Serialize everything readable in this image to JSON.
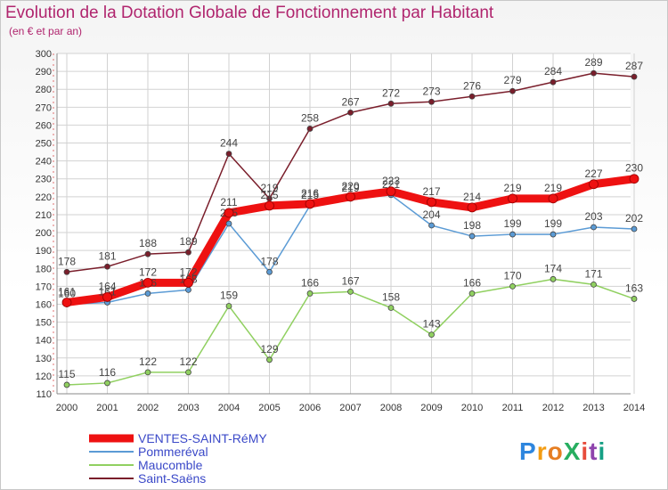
{
  "title": "Evolution de la Dotation Globale de Fonctionnement par Habitant",
  "subtitle": "(en € et par an)",
  "logo_text": "ProXiti",
  "colors": {
    "title": "#b0256e",
    "grid": "#d2d2d2",
    "axis_text": "#333333",
    "label_text": "#444444"
  },
  "chart_data": {
    "type": "line",
    "x": [
      2000,
      2001,
      2002,
      2003,
      2004,
      2005,
      2006,
      2007,
      2008,
      2009,
      2010,
      2011,
      2012,
      2013,
      2014
    ],
    "ylim": [
      110,
      300
    ],
    "yticks": [
      110,
      120,
      130,
      140,
      150,
      160,
      170,
      180,
      190,
      200,
      210,
      220,
      230,
      240,
      250,
      260,
      270,
      280,
      290,
      300
    ],
    "grid": true,
    "legend_position": "bottom-left",
    "series": [
      {
        "name": "Saint-Saëns",
        "color": "#7a1e2b",
        "values": [
          178,
          181,
          188,
          189,
          244,
          219,
          258,
          267,
          272,
          273,
          276,
          279,
          284,
          289,
          287
        ]
      },
      {
        "name": "Pommeréval",
        "color": "#5b9bd5",
        "values": [
          160,
          161,
          166,
          168,
          205,
          178,
          215,
          219,
          221,
          204,
          198,
          199,
          199,
          203,
          202
        ]
      },
      {
        "name": "Maucomble",
        "color": "#90d060",
        "values": [
          115,
          116,
          122,
          122,
          159,
          129,
          166,
          167,
          158,
          143,
          166,
          170,
          174,
          171,
          163
        ]
      },
      {
        "name": "VENTES-SAINT-RéMY",
        "color": "#ee1111",
        "values": [
          161,
          164,
          172,
          172,
          211,
          215,
          216,
          220,
          223,
          217,
          214,
          219,
          219,
          227,
          230
        ]
      }
    ]
  }
}
